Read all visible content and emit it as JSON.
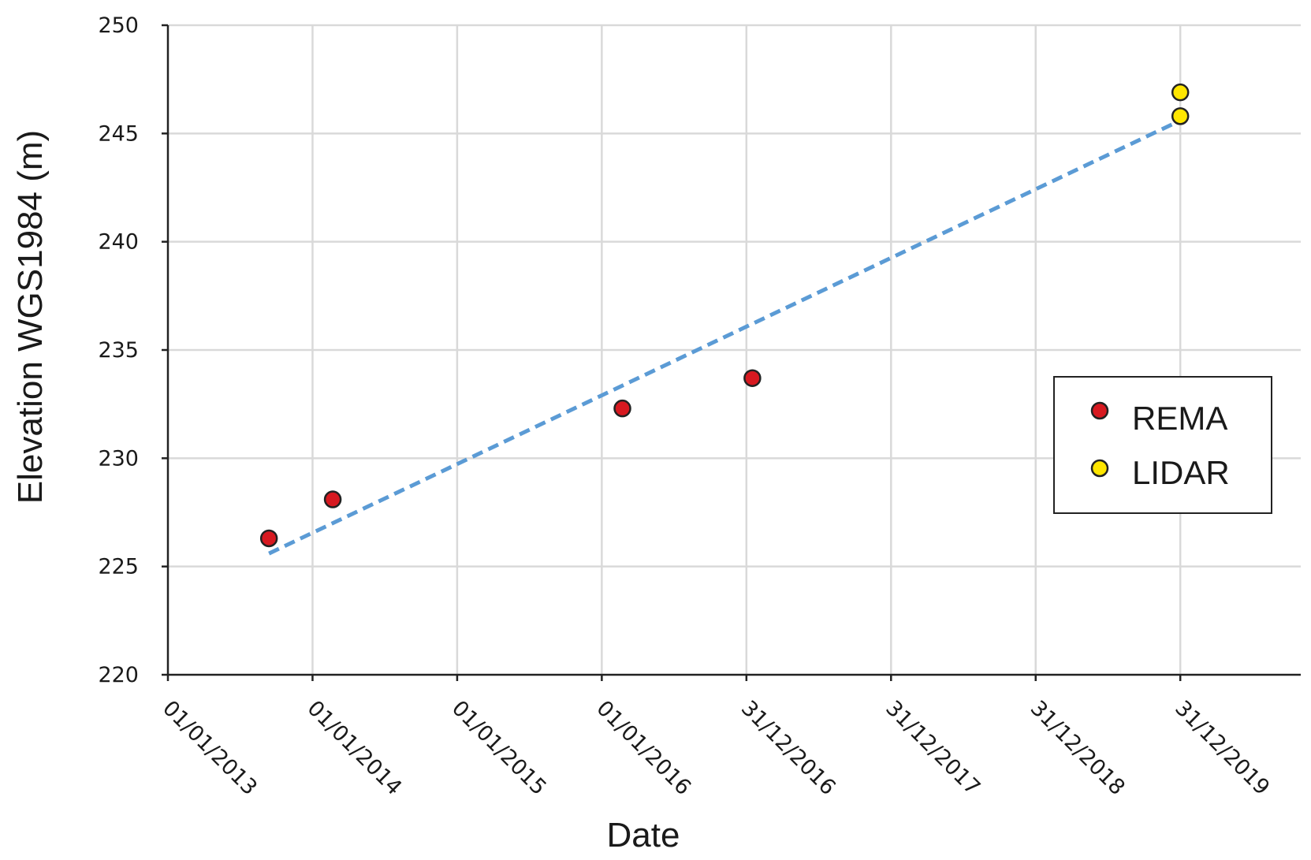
{
  "chart_data": {
    "type": "scatter",
    "title": "",
    "xlabel": "Date",
    "ylabel": "Elevation WGS1984 (m)",
    "x_axis_type": "date",
    "x_ticks": [
      "01/01/2013",
      "01/01/2014",
      "01/01/2015",
      "01/01/2016",
      "31/12/2016",
      "31/12/2017",
      "31/12/2018",
      "31/12/2019"
    ],
    "xlim": [
      "01/01/2013",
      "30/10/2020"
    ],
    "ylim": [
      220,
      250
    ],
    "y_ticks": [
      220,
      225,
      230,
      235,
      240,
      245,
      250
    ],
    "grid": true,
    "legend_position": "right",
    "series": [
      {
        "name": "REMA",
        "marker": "circle",
        "color": "#d71920",
        "points": [
          {
            "x": "13/09/2013",
            "y": 226.3
          },
          {
            "x": "21/02/2014",
            "y": 228.1
          },
          {
            "x": "22/02/2016",
            "y": 232.3
          },
          {
            "x": "15/01/2017",
            "y": 233.7
          }
        ]
      },
      {
        "name": "LIDAR",
        "marker": "circle",
        "color": "#ffe600",
        "points": [
          {
            "x": "31/12/2019",
            "y": 246.9
          },
          {
            "x": "31/12/2019",
            "y": 245.8
          }
        ]
      }
    ],
    "trendline": {
      "style": "dashed",
      "color": "#5b9bd5",
      "start": {
        "x": "13/09/2013",
        "y": 225.6
      },
      "end": {
        "x": "31/12/2019",
        "y": 245.6
      }
    }
  }
}
